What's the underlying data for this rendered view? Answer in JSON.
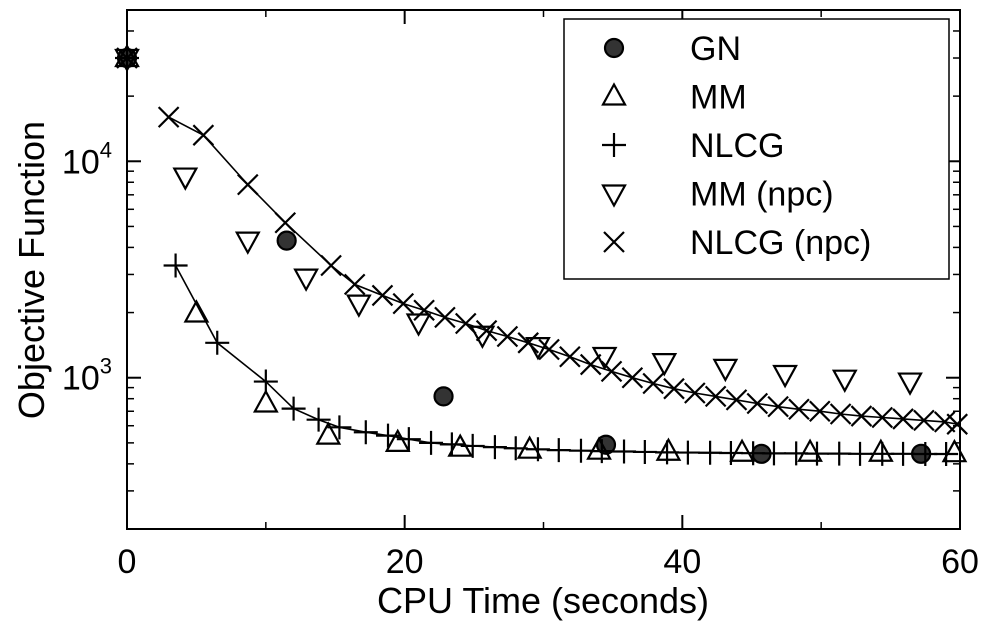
{
  "chart_data": {
    "type": "scatter",
    "title": "",
    "xlabel": "CPU Time (seconds)",
    "ylabel": "Objective Function",
    "xlim": [
      0,
      60
    ],
    "ylim": [
      200,
      50000
    ],
    "y_scale": "log",
    "x_ticks": [
      0,
      20,
      40,
      60
    ],
    "x_tick_labels": [
      "0",
      "20",
      "40",
      "60"
    ],
    "y_ticks": [
      1000,
      10000
    ],
    "y_tick_labels": [
      {
        "base": "10",
        "exp": "3"
      },
      {
        "base": "10",
        "exp": "4"
      }
    ],
    "grid": false,
    "legend_position": "top-right",
    "colors": {
      "ink": "#000000",
      "fill": "#333333"
    },
    "series": [
      {
        "name": "GN",
        "marker": "filled-circle",
        "x": [
          0,
          11.5,
          22.8,
          34.5,
          45.7,
          57.2
        ],
        "y": [
          30000,
          4300,
          820,
          490,
          445,
          445
        ]
      },
      {
        "name": "MM",
        "marker": "triangle-up",
        "x": [
          0,
          5,
          10,
          14.5,
          19.5,
          24,
          29,
          34,
          39,
          44.3,
          49.2,
          54.3,
          59.6
        ],
        "y": [
          30000,
          1980,
          760,
          540,
          500,
          475,
          465,
          460,
          455,
          450,
          450,
          450,
          448
        ]
      },
      {
        "name": "NLCG",
        "marker": "plus",
        "line": true,
        "x": [
          0,
          3.5,
          6.5,
          10,
          12,
          13.8,
          15.3,
          17.2,
          18.8,
          20.3,
          21.9,
          23.4,
          24.9,
          26.5,
          28,
          29.6,
          31.1,
          32.7,
          34.2,
          35.8,
          37.3,
          38.9,
          40.4,
          42,
          43.5,
          45.1,
          46.6,
          48.2,
          49.7,
          51.3,
          52.8,
          54.4,
          55.9,
          57.5,
          59
        ],
        "y": [
          30000,
          3300,
          1450,
          960,
          720,
          640,
          590,
          560,
          540,
          520,
          500,
          492,
          484,
          478,
          472,
          467,
          463,
          460,
          458,
          456,
          454,
          452,
          451,
          450,
          449,
          448,
          447,
          447,
          446,
          446,
          445,
          445,
          445,
          444,
          444
        ]
      },
      {
        "name": "MM (npc)",
        "marker": "triangle-down",
        "x": [
          0,
          4.2,
          8.7,
          12.9,
          16.7,
          21,
          25.6,
          29.6,
          34.4,
          38.7,
          43.1,
          47.4,
          51.7,
          56.4
        ],
        "y": [
          30000,
          8500,
          4300,
          2900,
          2200,
          1800,
          1580,
          1400,
          1260,
          1180,
          1110,
          1040,
          990,
          960
        ]
      },
      {
        "name": "NLCG (npc)",
        "marker": "x",
        "line": true,
        "x": [
          0,
          3,
          5.5,
          8.7,
          11.4,
          14.7,
          16.4,
          18.4,
          19.9,
          21.4,
          22.9,
          24.4,
          25.9,
          27.4,
          28.9,
          30.4,
          31.9,
          33.4,
          34.9,
          36.4,
          37.9,
          39.4,
          40.9,
          42.4,
          43.9,
          45.4,
          46.9,
          48.4,
          49.9,
          51.4,
          52.9,
          54.4,
          55.9,
          57.4,
          58.9,
          59.8
        ],
        "y": [
          30000,
          16000,
          13200,
          7800,
          5200,
          3300,
          2700,
          2400,
          2200,
          2050,
          1900,
          1780,
          1650,
          1550,
          1450,
          1350,
          1250,
          1150,
          1070,
          1000,
          940,
          890,
          850,
          820,
          790,
          760,
          735,
          715,
          700,
          680,
          665,
          655,
          645,
          635,
          625,
          610
        ]
      }
    ]
  }
}
